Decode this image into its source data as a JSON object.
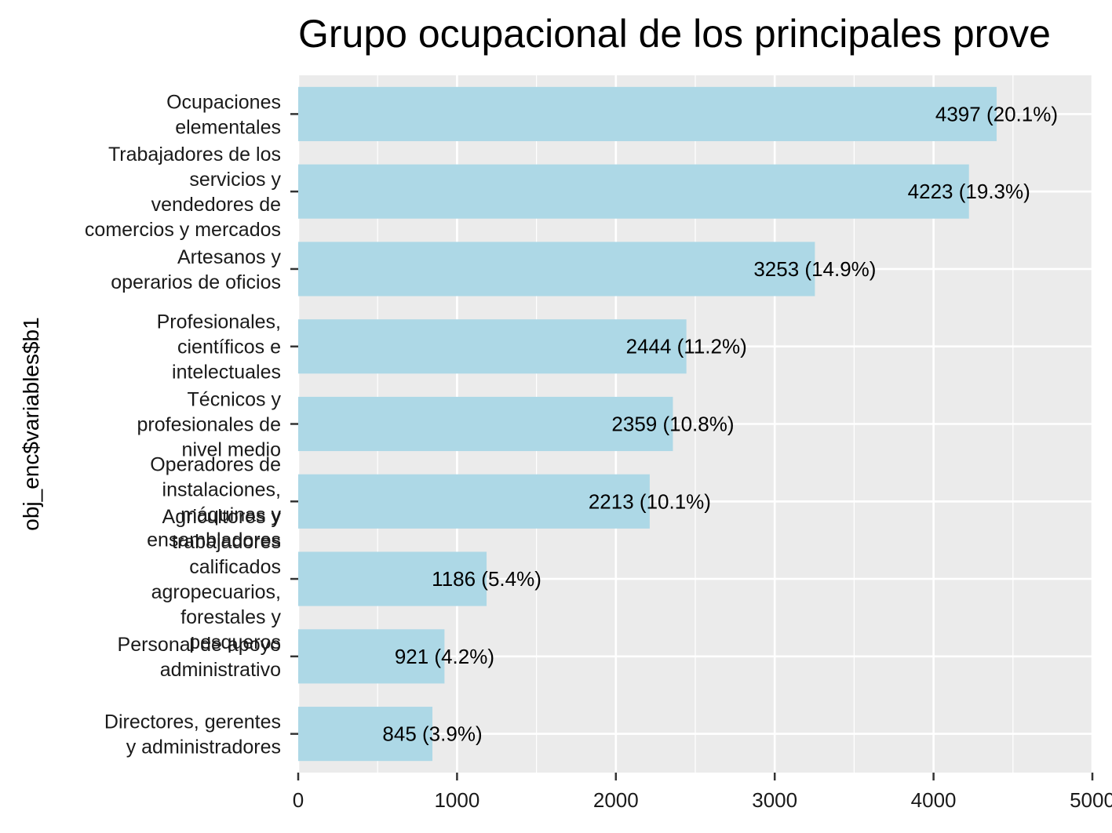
{
  "chart_data": {
    "type": "bar",
    "orientation": "horizontal",
    "title": "Grupo ocupacional de los principales prove",
    "xlabel": "",
    "ylabel": "obj_enc$variables$b1",
    "xlim": [
      0,
      5000
    ],
    "x_ticks": [
      "0",
      "1000",
      "2000",
      "3000",
      "4000",
      "5000"
    ],
    "x_tick_values": [
      0,
      1000,
      2000,
      3000,
      4000,
      5000
    ],
    "grid": true,
    "bar_color": "#add8e6",
    "panel_color": "#ebebeb",
    "grid_color": "#ffffff",
    "categories": [
      [
        "Ocupaciones",
        "elementales"
      ],
      [
        "Trabajadores de los",
        "servicios y",
        "vendedores de",
        "comercios y mercados"
      ],
      [
        "Artesanos y",
        "operarios de oficios"
      ],
      [
        "Profesionales,",
        "científicos e",
        "intelectuales"
      ],
      [
        "Técnicos y",
        "profesionales de",
        "nivel medio"
      ],
      [
        "Operadores de",
        "instalaciones,",
        "máquinas y",
        "ensambladores"
      ],
      [
        "Agricultores y",
        "trabajadores",
        "calificados",
        "agropecuarios,",
        "forestales y",
        "pesqueros"
      ],
      [
        "Personal de apoyo",
        "administrativo"
      ],
      [
        "Directores, gerentes",
        "y administradores"
      ]
    ],
    "values": [
      4397,
      4223,
      3253,
      2444,
      2359,
      2213,
      1186,
      921,
      845
    ],
    "data_labels": [
      "4397 (20.1%)",
      "4223 (19.3%)",
      "3253 (14.9%)",
      "2444 (11.2%)",
      "2359 (10.8%)",
      "2213 (10.1%)",
      "1186 (5.4%)",
      "921 (4.2%)",
      "845 (3.9%)"
    ]
  }
}
